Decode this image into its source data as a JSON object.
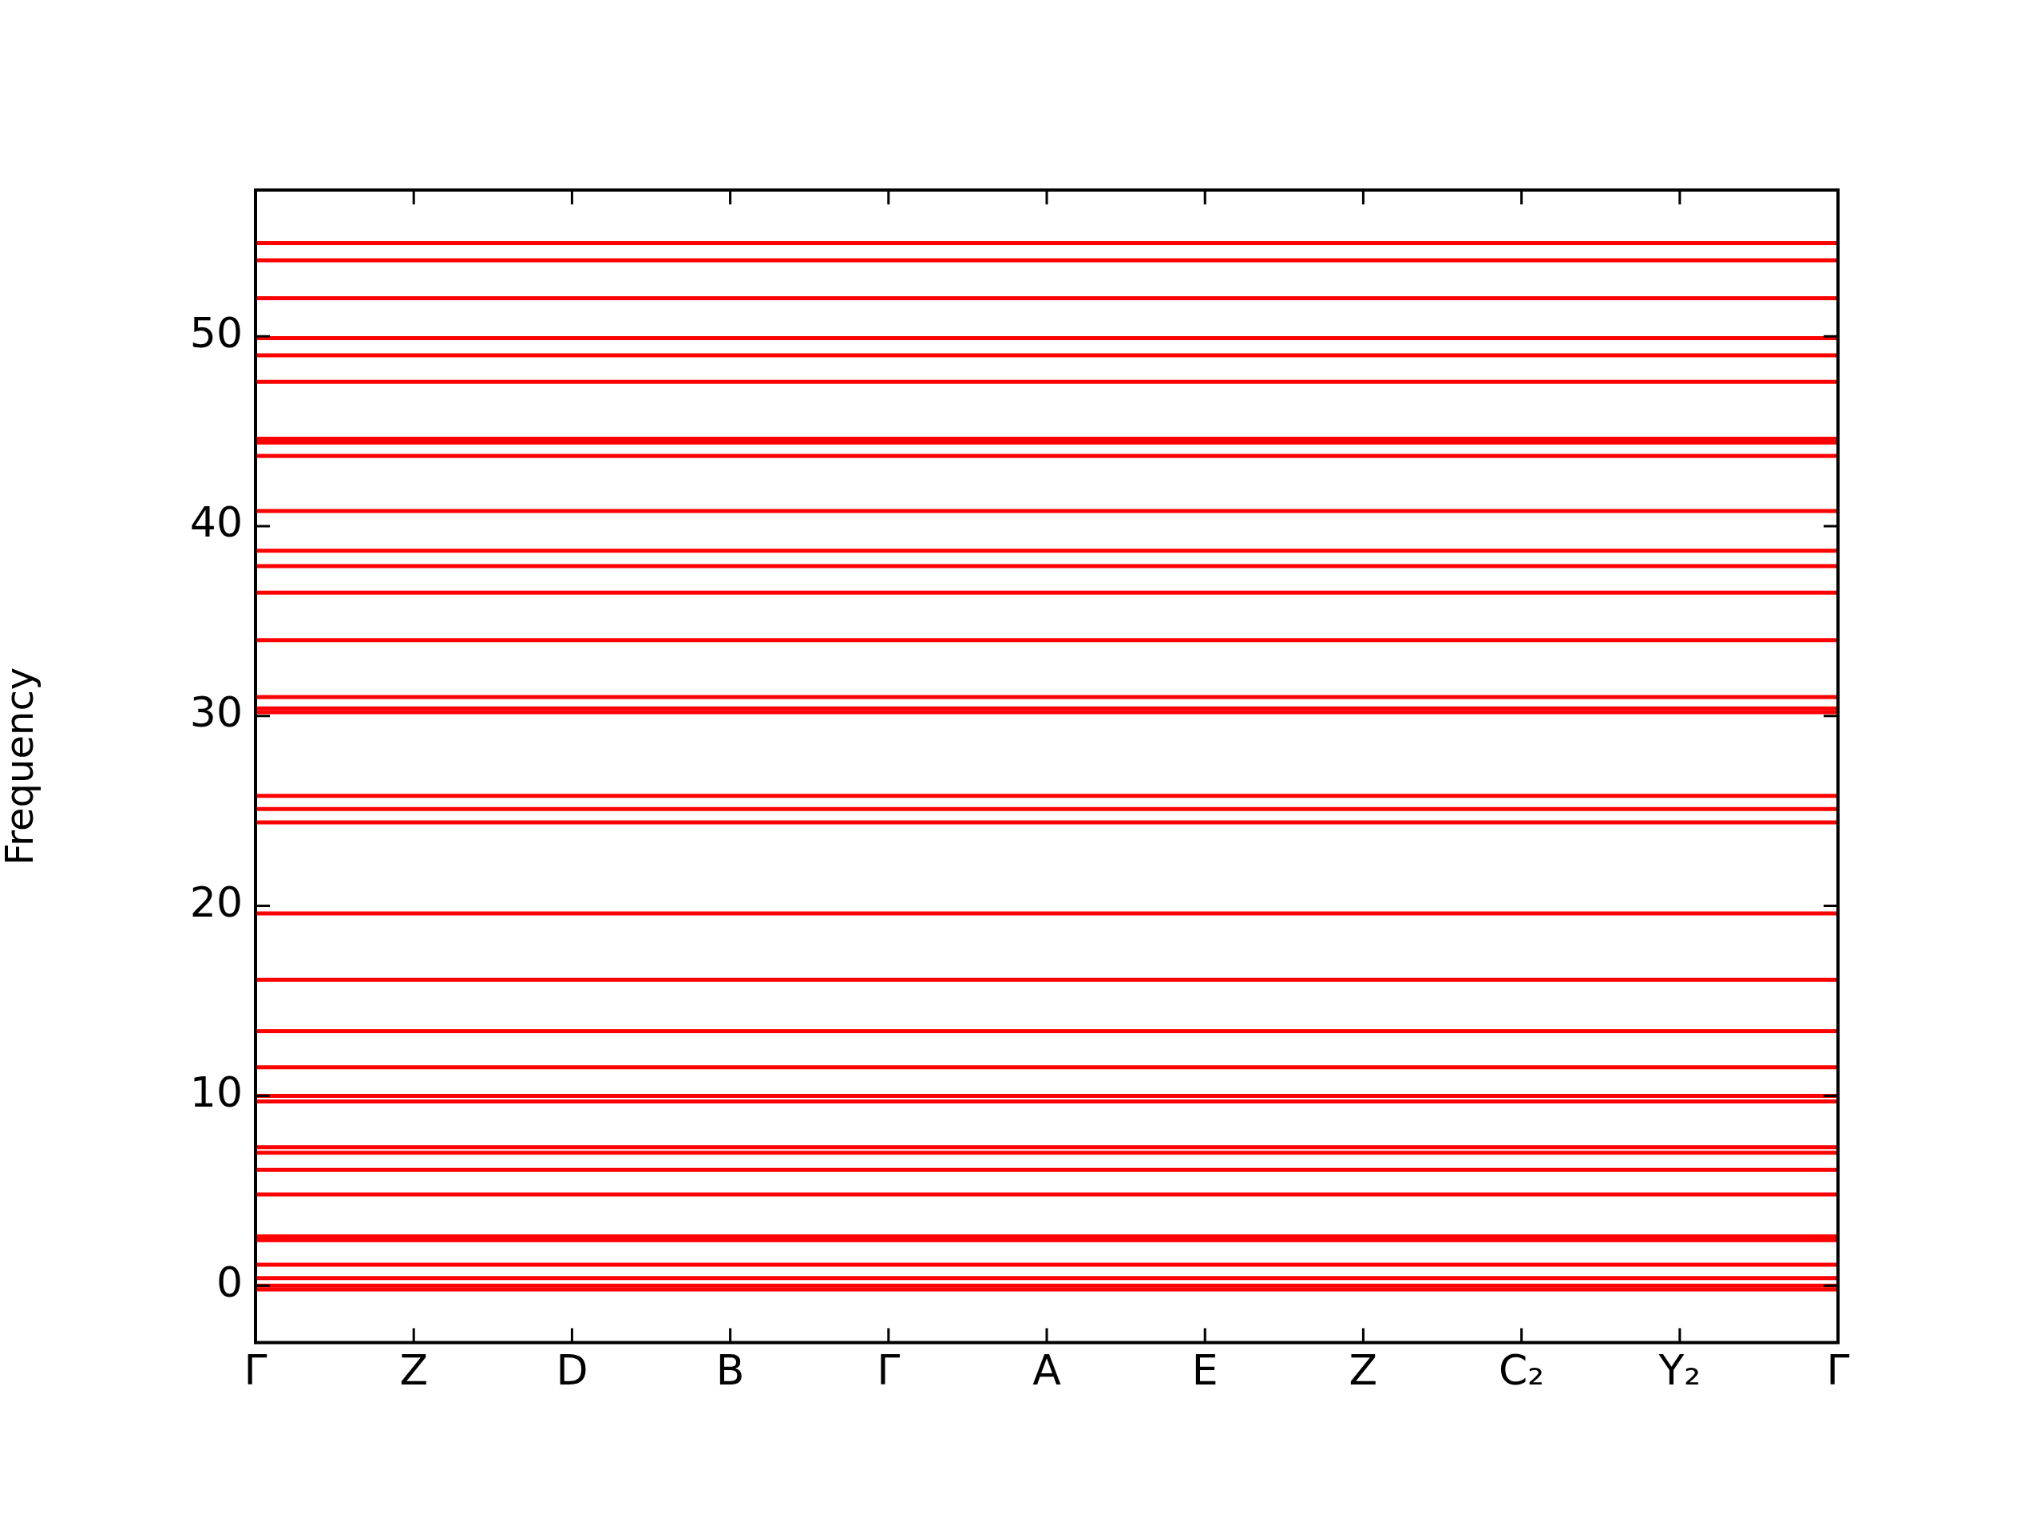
{
  "chart_data": {
    "type": "line",
    "ylabel": "Frequency",
    "categories": [
      "Γ",
      "Z",
      "D",
      "B",
      "Γ",
      "A",
      "E",
      "Z",
      "C₂",
      "Y₂",
      "Γ"
    ],
    "ylim": [
      -3,
      57.7
    ],
    "yticks": [
      0,
      10,
      20,
      30,
      40,
      50
    ],
    "grid": false,
    "legend": false,
    "marker": "none",
    "line_style": "solid",
    "series": [
      {
        "color": "#ff0000",
        "values": [
          -0.2,
          -0.2,
          -0.2,
          -0.2,
          -0.2,
          -0.2,
          -0.2,
          -0.2,
          -0.2,
          -0.2,
          -0.2
        ]
      },
      {
        "color": "#ff0000",
        "values": [
          0,
          0,
          0,
          0,
          0,
          0,
          0,
          0,
          0,
          0,
          0
        ]
      },
      {
        "color": "#ff0000",
        "values": [
          0.4,
          0.4,
          0.4,
          0.4,
          0.4,
          0.4,
          0.4,
          0.4,
          0.4,
          0.4,
          0.4
        ]
      },
      {
        "color": "#ff0000",
        "values": [
          1.1,
          1.1,
          1.1,
          1.1,
          1.1,
          1.1,
          1.1,
          1.1,
          1.1,
          1.1,
          1.1
        ]
      },
      {
        "color": "#ff0000",
        "values": [
          2.4,
          2.4,
          2.4,
          2.4,
          2.4,
          2.4,
          2.4,
          2.4,
          2.4,
          2.4,
          2.4
        ]
      },
      {
        "color": "#ff0000",
        "values": [
          2.6,
          2.6,
          2.6,
          2.6,
          2.6,
          2.6,
          2.6,
          2.6,
          2.6,
          2.6,
          2.6
        ]
      },
      {
        "color": "#ff0000",
        "values": [
          4.8,
          4.8,
          4.8,
          4.8,
          4.8,
          4.8,
          4.8,
          4.8,
          4.8,
          4.8,
          4.8
        ]
      },
      {
        "color": "#ff0000",
        "values": [
          6.1,
          6.1,
          6.1,
          6.1,
          6.1,
          6.1,
          6.1,
          6.1,
          6.1,
          6.1,
          6.1
        ]
      },
      {
        "color": "#ff0000",
        "values": [
          7.0,
          7.0,
          7.0,
          7.0,
          7.0,
          7.0,
          7.0,
          7.0,
          7.0,
          7.0,
          7.0
        ]
      },
      {
        "color": "#ff0000",
        "values": [
          7.3,
          7.3,
          7.3,
          7.3,
          7.3,
          7.3,
          7.3,
          7.3,
          7.3,
          7.3,
          7.3
        ]
      },
      {
        "color": "#ff0000",
        "values": [
          9.7,
          9.7,
          9.7,
          9.7,
          9.7,
          9.7,
          9.7,
          9.7,
          9.7,
          9.7,
          9.7
        ]
      },
      {
        "color": "#ff0000",
        "values": [
          10.0,
          10.0,
          10.0,
          10.0,
          10.0,
          10.0,
          10.0,
          10.0,
          10.0,
          10.0,
          10.0
        ]
      },
      {
        "color": "#ff0000",
        "values": [
          11.5,
          11.5,
          11.5,
          11.5,
          11.5,
          11.5,
          11.5,
          11.5,
          11.5,
          11.5,
          11.5
        ]
      },
      {
        "color": "#ff0000",
        "values": [
          13.4,
          13.4,
          13.4,
          13.4,
          13.4,
          13.4,
          13.4,
          13.4,
          13.4,
          13.4,
          13.4
        ]
      },
      {
        "color": "#ff0000",
        "values": [
          16.1,
          16.1,
          16.1,
          16.1,
          16.1,
          16.1,
          16.1,
          16.1,
          16.1,
          16.1,
          16.1
        ]
      },
      {
        "color": "#ff0000",
        "values": [
          19.6,
          19.6,
          19.6,
          19.6,
          19.6,
          19.6,
          19.6,
          19.6,
          19.6,
          19.6,
          19.6
        ]
      },
      {
        "color": "#ff0000",
        "values": [
          24.4,
          24.4,
          24.4,
          24.4,
          24.4,
          24.4,
          24.4,
          24.4,
          24.4,
          24.4,
          24.4
        ]
      },
      {
        "color": "#ff0000",
        "values": [
          25.1,
          25.1,
          25.1,
          25.1,
          25.1,
          25.1,
          25.1,
          25.1,
          25.1,
          25.1,
          25.1
        ]
      },
      {
        "color": "#ff0000",
        "values": [
          25.8,
          25.8,
          25.8,
          25.8,
          25.8,
          25.8,
          25.8,
          25.8,
          25.8,
          25.8,
          25.8
        ]
      },
      {
        "color": "#ff0000",
        "values": [
          30.2,
          30.2,
          30.2,
          30.2,
          30.2,
          30.2,
          30.2,
          30.2,
          30.2,
          30.2,
          30.2
        ]
      },
      {
        "color": "#ff0000",
        "values": [
          30.4,
          30.4,
          30.4,
          30.4,
          30.4,
          30.4,
          30.4,
          30.4,
          30.4,
          30.4,
          30.4
        ]
      },
      {
        "color": "#ff0000",
        "values": [
          31.0,
          31.0,
          31.0,
          31.0,
          31.0,
          31.0,
          31.0,
          31.0,
          31.0,
          31.0,
          31.0
        ]
      },
      {
        "color": "#ff0000",
        "values": [
          34.0,
          34.0,
          34.0,
          34.0,
          34.0,
          34.0,
          34.0,
          34.0,
          34.0,
          34.0,
          34.0
        ]
      },
      {
        "color": "#ff0000",
        "values": [
          36.5,
          36.5,
          36.5,
          36.5,
          36.5,
          36.5,
          36.5,
          36.5,
          36.5,
          36.5,
          36.5
        ]
      },
      {
        "color": "#ff0000",
        "values": [
          37.9,
          37.9,
          37.9,
          37.9,
          37.9,
          37.9,
          37.9,
          37.9,
          37.9,
          37.9,
          37.9
        ]
      },
      {
        "color": "#ff0000",
        "values": [
          38.7,
          38.7,
          38.7,
          38.7,
          38.7,
          38.7,
          38.7,
          38.7,
          38.7,
          38.7,
          38.7
        ]
      },
      {
        "color": "#ff0000",
        "values": [
          40.8,
          40.8,
          40.8,
          40.8,
          40.8,
          40.8,
          40.8,
          40.8,
          40.8,
          40.8,
          40.8
        ]
      },
      {
        "color": "#ff0000",
        "values": [
          43.7,
          43.7,
          43.7,
          43.7,
          43.7,
          43.7,
          43.7,
          43.7,
          43.7,
          43.7,
          43.7
        ]
      },
      {
        "color": "#ff0000",
        "values": [
          44.4,
          44.4,
          44.4,
          44.4,
          44.4,
          44.4,
          44.4,
          44.4,
          44.4,
          44.4,
          44.4
        ]
      },
      {
        "color": "#ff0000",
        "values": [
          44.6,
          44.6,
          44.6,
          44.6,
          44.6,
          44.6,
          44.6,
          44.6,
          44.6,
          44.6,
          44.6
        ]
      },
      {
        "color": "#ff0000",
        "values": [
          47.6,
          47.6,
          47.6,
          47.6,
          47.6,
          47.6,
          47.6,
          47.6,
          47.6,
          47.6,
          47.6
        ]
      },
      {
        "color": "#ff0000",
        "values": [
          49.0,
          49.0,
          49.0,
          49.0,
          49.0,
          49.0,
          49.0,
          49.0,
          49.0,
          49.0,
          49.0
        ]
      },
      {
        "color": "#ff0000",
        "values": [
          49.9,
          49.9,
          49.9,
          49.9,
          49.9,
          49.9,
          49.9,
          49.9,
          49.9,
          49.9,
          49.9
        ]
      },
      {
        "color": "#ff0000",
        "values": [
          52.0,
          52.0,
          52.0,
          52.0,
          52.0,
          52.0,
          52.0,
          52.0,
          52.0,
          52.0,
          52.0
        ]
      },
      {
        "color": "#ff0000",
        "values": [
          54.0,
          54.0,
          54.0,
          54.0,
          54.0,
          54.0,
          54.0,
          54.0,
          54.0,
          54.0,
          54.0
        ]
      },
      {
        "color": "#ff0000",
        "values": [
          54.9,
          54.9,
          54.9,
          54.9,
          54.9,
          54.9,
          54.9,
          54.9,
          54.9,
          54.9,
          54.9
        ]
      }
    ]
  }
}
